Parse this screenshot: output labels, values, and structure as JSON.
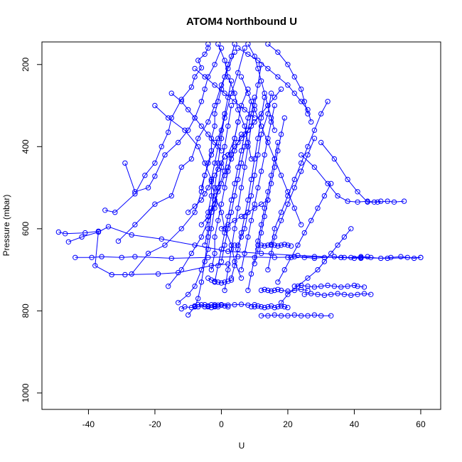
{
  "chart_data": {
    "type": "scatter",
    "title": "ATOM4 Northbound U",
    "xlabel": "U",
    "ylabel": "Pressure (mbar)",
    "xlim": [
      -54,
      66
    ],
    "ylim": [
      1040,
      145
    ],
    "y_axis_inverted": true,
    "x_ticks": [
      -40,
      -20,
      0,
      20,
      40,
      60
    ],
    "y_ticks": [
      200,
      400,
      600,
      800,
      1000
    ],
    "x_tick_labels": [
      "-40",
      "-20",
      "0",
      "20",
      "40",
      "60"
    ],
    "y_tick_labels": [
      "200",
      "400",
      "600",
      "800",
      "1000"
    ],
    "grid": false,
    "legend": "none",
    "marker": "open-circle",
    "color": "#0000ff",
    "series": [
      {
        "x": [
          -49,
          -47,
          -41,
          -37,
          -38,
          -33,
          -29,
          -19,
          -13,
          -3,
          2
        ],
        "y": [
          608,
          612,
          610,
          606,
          690,
          712,
          712,
          710,
          707,
          690,
          686
        ]
      },
      {
        "x": [
          -44,
          -39,
          -36,
          -30,
          -26,
          -15,
          -4,
          5,
          16,
          28,
          42
        ],
        "y": [
          670,
          670,
          668,
          670,
          668,
          672,
          670,
          668,
          670,
          668,
          672
        ]
      },
      {
        "x": [
          -46,
          -42,
          -37,
          -34,
          -27,
          -18,
          -8,
          2,
          12,
          23,
          36,
          50,
          60
        ],
        "y": [
          632,
          620,
          608,
          595,
          615,
          625,
          640,
          655,
          660,
          665,
          670,
          672,
          670
        ]
      },
      {
        "x": [
          -35,
          -32,
          -26,
          -23,
          -20,
          -18,
          -16,
          -15,
          -12,
          -9,
          -8,
          -6,
          -7,
          -5,
          -4,
          -4
        ],
        "y": [
          555,
          560,
          515,
          470,
          440,
          400,
          365,
          330,
          285,
          255,
          230,
          208,
          190,
          175,
          160,
          150
        ]
      },
      {
        "x": [
          -29,
          -26,
          -22,
          -20,
          -17,
          -13,
          -10,
          -8,
          -6,
          -5,
          -4,
          -2,
          0
        ],
        "y": [
          440,
          510,
          500,
          472,
          420,
          390,
          360,
          330,
          290,
          260,
          230,
          200,
          160
        ]
      },
      {
        "x": [
          -31,
          -26,
          -20,
          -15,
          -12,
          -9,
          -7,
          -4,
          -2,
          0,
          2,
          4
        ],
        "y": [
          630,
          590,
          540,
          520,
          450,
          430,
          380,
          340,
          300,
          250,
          210,
          170
        ]
      },
      {
        "x": [
          -27,
          -22,
          -17,
          -12,
          -8,
          -6,
          -5,
          -3,
          -1,
          1,
          3,
          5,
          7
        ],
        "y": [
          710,
          660,
          640,
          600,
          560,
          510,
          470,
          420,
          380,
          330,
          270,
          220,
          160
        ]
      },
      {
        "x": [
          -20,
          -16,
          -11,
          -7,
          -5,
          -3,
          -2,
          0,
          1,
          3,
          4,
          6
        ],
        "y": [
          300,
          330,
          360,
          400,
          440,
          480,
          520,
          560,
          600,
          640,
          680,
          720
        ]
      },
      {
        "x": [
          -16,
          -12,
          -9,
          -6,
          -4,
          -2,
          -1,
          1,
          2,
          4,
          5
        ],
        "y": [
          740,
          700,
          660,
          620,
          580,
          540,
          500,
          460,
          420,
          380,
          340
        ]
      },
      {
        "x": [
          -13,
          -10,
          -8,
          -6,
          -4,
          -3,
          -2,
          -1,
          0,
          1,
          2,
          3
        ],
        "y": [
          780,
          760,
          740,
          700,
          650,
          600,
          550,
          500,
          450,
          400,
          350,
          300
        ]
      },
      {
        "x": [
          -10,
          -8,
          -7,
          -6,
          -5,
          -4,
          -3,
          -2,
          -1,
          0,
          1
        ],
        "y": [
          810,
          790,
          770,
          730,
          680,
          620,
          560,
          500,
          440,
          380,
          320
        ]
      },
      {
        "x": [
          -12,
          -11,
          -9,
          -8,
          -7,
          -5,
          -4,
          -3,
          -2,
          -1,
          0
        ],
        "y": [
          795,
          790,
          792,
          788,
          790,
          785,
          790,
          792,
          788,
          790,
          786
        ]
      },
      {
        "x": [
          -8,
          -7,
          -6,
          -5,
          -4,
          -3,
          -2,
          -1,
          0,
          1,
          2
        ],
        "y": [
          790,
          785,
          785,
          790,
          788,
          785,
          790,
          786,
          785,
          788,
          790
        ]
      },
      {
        "x": [
          -6,
          -5,
          -4,
          -3,
          -3,
          -2,
          -2,
          -1,
          0,
          1,
          2,
          3,
          4
        ],
        "y": [
          500,
          470,
          440,
          410,
          380,
          350,
          320,
          290,
          260,
          230,
          200,
          180,
          150
        ]
      },
      {
        "x": [
          -5,
          -4,
          -4,
          -3,
          -3,
          -2,
          -1,
          0,
          1,
          2,
          3
        ],
        "y": [
          640,
          600,
          560,
          520,
          480,
          440,
          400,
          360,
          320,
          280,
          240
        ]
      },
      {
        "x": [
          -3,
          -2,
          -2,
          -1,
          0,
          1,
          2,
          3,
          4,
          5,
          6,
          8
        ],
        "y": [
          700,
          660,
          620,
          580,
          540,
          500,
          460,
          420,
          380,
          340,
          300,
          260
        ]
      },
      {
        "x": [
          -2,
          -1,
          0,
          1,
          2,
          3,
          4,
          5,
          6,
          7,
          8,
          9
        ],
        "y": [
          730,
          690,
          650,
          610,
          570,
          530,
          490,
          450,
          410,
          370,
          330,
          290
        ]
      },
      {
        "x": [
          0,
          1,
          2,
          3,
          4,
          5,
          6,
          7,
          8,
          9,
          10
        ],
        "y": [
          680,
          640,
          600,
          560,
          520,
          480,
          440,
          400,
          360,
          320,
          280
        ]
      },
      {
        "x": [
          1,
          2,
          3,
          4,
          5,
          6,
          7,
          8,
          9,
          10,
          11,
          12
        ],
        "y": [
          750,
          700,
          650,
          600,
          550,
          500,
          450,
          400,
          350,
          300,
          250,
          200
        ]
      },
      {
        "x": [
          3,
          4,
          5,
          6,
          7,
          8,
          9,
          10,
          11,
          12,
          13
        ],
        "y": [
          720,
          690,
          650,
          610,
          570,
          530,
          480,
          430,
          380,
          330,
          280
        ]
      },
      {
        "x": [
          4,
          5,
          6,
          7,
          8,
          9,
          10,
          11,
          12,
          14,
          15
        ],
        "y": [
          640,
          640,
          620,
          600,
          560,
          520,
          470,
          420,
          370,
          320,
          270
        ]
      },
      {
        "x": [
          6,
          7,
          8,
          9,
          10,
          11,
          12,
          13,
          14,
          15,
          16
        ],
        "y": [
          700,
          660,
          620,
          580,
          540,
          500,
          460,
          420,
          380,
          340,
          300
        ]
      },
      {
        "x": [
          8,
          9,
          10,
          11,
          12,
          13,
          14,
          15,
          16,
          17
        ],
        "y": [
          750,
          710,
          670,
          630,
          590,
          550,
          510,
          470,
          430,
          390
        ]
      },
      {
        "x": [
          9,
          10,
          11,
          12,
          13,
          14,
          15,
          16,
          17,
          18,
          19,
          20
        ],
        "y": [
          790,
          790,
          788,
          790,
          792,
          790,
          788,
          792,
          790,
          788,
          790,
          792
        ]
      },
      {
        "x": [
          10,
          11,
          12,
          13,
          14,
          15,
          16,
          17,
          18,
          19
        ],
        "y": [
          685,
          650,
          610,
          570,
          530,
          490,
          450,
          410,
          370,
          330
        ]
      },
      {
        "x": [
          11,
          12,
          13,
          14,
          15,
          16,
          17,
          18,
          19,
          20,
          21
        ],
        "y": [
          640,
          640,
          642,
          640,
          638,
          640,
          642,
          640,
          638,
          640,
          642
        ]
      },
      {
        "x": [
          12,
          13,
          14,
          15,
          16,
          17,
          18,
          20,
          22,
          24,
          26
        ],
        "y": [
          750,
          748,
          750,
          752,
          750,
          748,
          750,
          752,
          750,
          748,
          750
        ]
      },
      {
        "x": [
          12,
          14,
          16,
          18,
          20,
          22,
          24,
          26,
          28,
          30,
          33
        ],
        "y": [
          812,
          812,
          810,
          812,
          812,
          810,
          812,
          812,
          810,
          812,
          812
        ]
      },
      {
        "x": [
          14,
          15,
          16,
          18,
          20,
          22,
          24,
          26,
          28
        ],
        "y": [
          700,
          660,
          620,
          580,
          540,
          500,
          460,
          420,
          380
        ]
      },
      {
        "x": [
          15,
          16,
          18,
          20,
          22,
          24,
          26,
          28,
          30,
          32
        ],
        "y": [
          640,
          600,
          560,
          520,
          480,
          440,
          400,
          360,
          320,
          290
        ]
      },
      {
        "x": [
          17,
          19,
          21,
          23,
          25,
          27,
          29,
          31,
          33
        ],
        "y": [
          730,
          700,
          670,
          640,
          610,
          580,
          550,
          520,
          490
        ]
      },
      {
        "x": [
          18,
          20,
          23,
          26,
          29,
          31,
          33,
          35,
          37,
          39
        ],
        "y": [
          780,
          760,
          740,
          720,
          700,
          680,
          660,
          640,
          620,
          600
        ]
      },
      {
        "x": [
          20,
          22,
          25,
          28,
          31,
          34,
          37,
          40,
          42,
          44
        ],
        "y": [
          670,
          668,
          670,
          672,
          670,
          668,
          670,
          672,
          670,
          668
        ]
      },
      {
        "x": [
          22,
          24,
          26,
          28,
          30,
          32,
          34,
          36,
          38,
          40,
          41,
          43
        ],
        "y": [
          740,
          738,
          740,
          742,
          740,
          738,
          740,
          742,
          740,
          738,
          740,
          742
        ]
      },
      {
        "x": [
          25,
          27,
          29,
          31,
          33,
          35,
          37,
          39,
          41,
          43,
          45
        ],
        "y": [
          760,
          758,
          760,
          762,
          760,
          758,
          760,
          762,
          760,
          758,
          760
        ]
      },
      {
        "x": [
          36,
          39,
          42,
          45,
          48,
          51,
          54,
          56,
          58,
          60
        ],
        "y": [
          670,
          670,
          668,
          670,
          672,
          670,
          668,
          670,
          672,
          670
        ]
      },
      {
        "x": [
          30,
          34,
          38,
          41,
          44,
          47,
          50,
          52,
          55
        ],
        "y": [
          390,
          430,
          480,
          510,
          535,
          535,
          533,
          535,
          533
        ]
      },
      {
        "x": [
          24,
          28,
          32,
          35,
          38,
          41,
          44,
          46,
          48
        ],
        "y": [
          420,
          450,
          490,
          520,
          533,
          535,
          533,
          535,
          533
        ]
      },
      {
        "x": [
          5,
          8,
          11,
          14,
          17,
          20,
          22,
          24,
          26,
          27
        ],
        "y": [
          160,
          175,
          190,
          210,
          230,
          250,
          270,
          290,
          310,
          340
        ]
      },
      {
        "x": [
          14,
          17,
          20,
          22,
          24,
          25,
          26
        ],
        "y": [
          150,
          170,
          200,
          230,
          260,
          290,
          320
        ]
      },
      {
        "x": [
          -8,
          -5,
          -2,
          1,
          4,
          7,
          10
        ],
        "y": [
          210,
          230,
          250,
          270,
          290,
          310,
          330
        ]
      },
      {
        "x": [
          -15,
          -12,
          -10,
          -8,
          -6,
          -4,
          -2,
          0
        ],
        "y": [
          270,
          290,
          310,
          330,
          350,
          370,
          390,
          410
        ]
      },
      {
        "x": [
          -10,
          -8,
          -6,
          -5,
          -4,
          -3,
          -2,
          -1,
          0,
          1
        ],
        "y": [
          560,
          545,
          530,
          515,
          500,
          485,
          470,
          455,
          440,
          425
        ]
      },
      {
        "x": [
          -6,
          -4,
          -3,
          -2,
          -1,
          0,
          1,
          2,
          3,
          4,
          5,
          6
        ],
        "y": [
          590,
          570,
          550,
          530,
          510,
          490,
          470,
          450,
          430,
          410,
          390,
          370
        ]
      },
      {
        "x": [
          0,
          2,
          4,
          6,
          8,
          10,
          12,
          14
        ],
        "y": [
          600,
          590,
          580,
          570,
          560,
          550,
          540,
          530
        ]
      },
      {
        "x": [
          2,
          4,
          6,
          8,
          10,
          12,
          14,
          16,
          18
        ],
        "y": [
          420,
          400,
          380,
          360,
          340,
          320,
          300,
          280,
          260
        ]
      },
      {
        "x": [
          -4,
          -3,
          -2,
          -1,
          0,
          1,
          2,
          3
        ],
        "y": [
          720,
          725,
          728,
          730,
          732,
          730,
          728,
          725
        ]
      },
      {
        "x": [
          -2,
          0,
          2,
          4,
          6,
          8,
          10
        ],
        "y": [
          785,
          785,
          786,
          785,
          784,
          786,
          785
        ]
      },
      {
        "x": [
          6,
          8,
          10,
          12,
          14,
          16,
          18,
          20,
          22,
          24
        ],
        "y": [
          230,
          270,
          310,
          350,
          390,
          430,
          470,
          510,
          550,
          590
        ]
      },
      {
        "x": [
          8,
          10,
          11,
          12,
          13,
          14,
          15,
          16
        ],
        "y": [
          150,
          180,
          210,
          240,
          270,
          300,
          330,
          360
        ]
      },
      {
        "x": [
          -1,
          1,
          2,
          4,
          5,
          7,
          8,
          9
        ],
        "y": [
          150,
          190,
          230,
          270,
          310,
          350,
          390,
          430
        ]
      }
    ]
  }
}
